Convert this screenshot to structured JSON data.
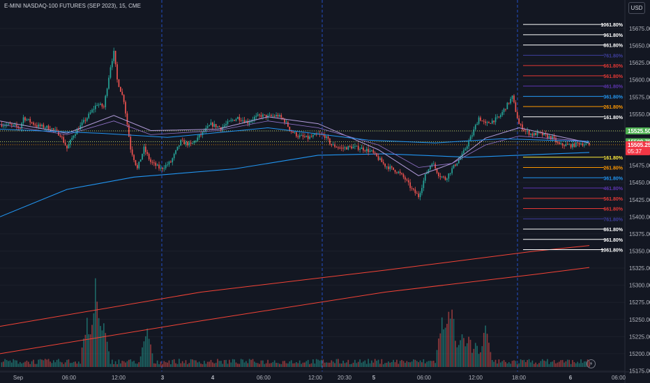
{
  "header": {
    "title": "E-MINI NASDAQ-100 FUTURES (SEP 2023), 15, CME",
    "currency": "USD"
  },
  "chart_data": {
    "type": "candlestick",
    "title": "E-MINI NASDAQ-100 FUTURES (SEP 2023), 15, CME",
    "y_ticks": [
      15675,
      15650,
      15625,
      15600,
      15575,
      15550,
      15525,
      15500,
      15475,
      15450,
      15425,
      15400,
      15375,
      15350,
      15325,
      15300,
      15275,
      15250,
      15225,
      15200,
      15175,
      15150
    ],
    "y_tick_labels": [
      "15675.00",
      "15650.00",
      "15625.00",
      "15600.00",
      "15575.00",
      "15550.00",
      "15525.00",
      "15500.00",
      "15475.00",
      "15450.00",
      "15425.00",
      "15400.00",
      "15375.00",
      "15350.00",
      "15325.00",
      "15300.00",
      "15275.00",
      "15250.00",
      "15225.00",
      "15200.00",
      "15175.00",
      "15150.00"
    ],
    "x_tick_labels": [
      "Sep",
      "06:00",
      "12:00",
      "3",
      "4",
      "06:00",
      "12:00",
      "20:30",
      "5",
      "06:00",
      "12:00",
      "18:00",
      "6",
      "06:00"
    ],
    "session_dividers": [
      "3",
      "4",
      "5",
      "6"
    ],
    "price_labels": {
      "level_a": "15525.50",
      "level_b": "15509.75",
      "last": "15505.25",
      "countdown": "05:37"
    },
    "colors": {
      "up": "#26a69a",
      "down": "#ef5350",
      "ema_fast": "#b39ddb",
      "ema_mid": "#2196f3",
      "ema_slow": "#f44336",
      "divider": "#2962ff",
      "background": "#131722"
    },
    "fib_levels": [
      {
        "label": "1061.80%",
        "value": 15681,
        "color": "#ffffff"
      },
      {
        "label": "961.80%",
        "value": 15666,
        "color": "#ffffff"
      },
      {
        "label": "861.80%",
        "value": 15651,
        "color": "#ffffff"
      },
      {
        "label": "761.80%",
        "value": 15636,
        "color": "#3f3f9f"
      },
      {
        "label": "661.80%",
        "value": 15621,
        "color": "#e53935"
      },
      {
        "label": "561.80%",
        "value": 15606,
        "color": "#e53935"
      },
      {
        "label": "461.80%",
        "value": 15591,
        "color": "#5e35b1"
      },
      {
        "label": "361.80%",
        "value": 15576,
        "color": "#2196f3"
      },
      {
        "label": "261.80%",
        "value": 15561,
        "color": "#ff9800"
      },
      {
        "label": "161.80%",
        "value": 15546,
        "color": "#ffffff"
      },
      {
        "label": "161.80%",
        "value": 15487,
        "color": "#ffeb3b"
      },
      {
        "label": "261.80%",
        "value": 15472,
        "color": "#ff9800"
      },
      {
        "label": "361.80%",
        "value": 15457,
        "color": "#2196f3"
      },
      {
        "label": "461.80%",
        "value": 15442,
        "color": "#5e35b1"
      },
      {
        "label": "561.80%",
        "value": 15427,
        "color": "#e53935"
      },
      {
        "label": "661.80%",
        "value": 15412,
        "color": "#e53935"
      },
      {
        "label": "761.80%",
        "value": 15397,
        "color": "#3f3f9f"
      },
      {
        "label": "861.80%",
        "value": 15382,
        "color": "#ffffff"
      },
      {
        "label": "961.80%",
        "value": 15367,
        "color": "#ffffff"
      },
      {
        "label": "1061.80%",
        "value": 15352,
        "color": "#ffffff"
      }
    ],
    "close_path": [
      [
        0,
        15535
      ],
      [
        6,
        15534
      ],
      [
        12,
        15530
      ],
      [
        14,
        15545
      ],
      [
        22,
        15533
      ],
      [
        30,
        15530
      ],
      [
        36,
        15520
      ],
      [
        40,
        15500
      ],
      [
        44,
        15520
      ],
      [
        52,
        15545
      ],
      [
        58,
        15565
      ],
      [
        62,
        15560
      ],
      [
        66,
        15620
      ],
      [
        68,
        15640
      ],
      [
        70,
        15600
      ],
      [
        74,
        15570
      ],
      [
        78,
        15500
      ],
      [
        82,
        15470
      ],
      [
        86,
        15500
      ],
      [
        90,
        15480
      ],
      [
        96,
        15470
      ],
      [
        102,
        15480
      ],
      [
        108,
        15510
      ],
      [
        114,
        15505
      ],
      [
        120,
        15520
      ],
      [
        126,
        15535
      ],
      [
        132,
        15530
      ],
      [
        138,
        15540
      ],
      [
        142,
        15545
      ],
      [
        148,
        15538
      ],
      [
        152,
        15545
      ],
      [
        156,
        15548
      ],
      [
        160,
        15546
      ],
      [
        166,
        15548
      ],
      [
        170,
        15540
      ],
      [
        174,
        15525
      ],
      [
        178,
        15518
      ],
      [
        184,
        15515
      ],
      [
        190,
        15520
      ],
      [
        194,
        15518
      ],
      [
        198,
        15505
      ],
      [
        204,
        15500
      ],
      [
        210,
        15502
      ],
      [
        216,
        15500
      ],
      [
        222,
        15495
      ],
      [
        226,
        15485
      ],
      [
        230,
        15475
      ],
      [
        234,
        15470
      ],
      [
        238,
        15465
      ],
      [
        242,
        15455
      ],
      [
        246,
        15440
      ],
      [
        250,
        15430
      ],
      [
        254,
        15460
      ],
      [
        258,
        15480
      ],
      [
        262,
        15462
      ],
      [
        266,
        15455
      ],
      [
        270,
        15470
      ],
      [
        276,
        15490
      ],
      [
        282,
        15520
      ],
      [
        286,
        15545
      ],
      [
        290,
        15535
      ],
      [
        294,
        15540
      ],
      [
        298,
        15545
      ],
      [
        302,
        15560
      ],
      [
        306,
        15575
      ],
      [
        310,
        15535
      ],
      [
        314,
        15525
      ],
      [
        318,
        15520
      ],
      [
        322,
        15522
      ],
      [
        326,
        15518
      ],
      [
        330,
        15515
      ],
      [
        334,
        15505
      ],
      [
        338,
        15505
      ],
      [
        342,
        15504
      ],
      [
        346,
        15508
      ],
      [
        350,
        15506
      ],
      [
        352,
        15505.25
      ]
    ],
    "ema_fast": [
      [
        0,
        15540
      ],
      [
        40,
        15522
      ],
      [
        68,
        15548
      ],
      [
        90,
        15526
      ],
      [
        130,
        15528
      ],
      [
        160,
        15546
      ],
      [
        190,
        15536
      ],
      [
        226,
        15498
      ],
      [
        250,
        15460
      ],
      [
        270,
        15478
      ],
      [
        290,
        15515
      ],
      [
        310,
        15530
      ],
      [
        352,
        15508
      ]
    ],
    "ema_mid": [
      [
        0,
        15535
      ],
      [
        40,
        15520
      ],
      [
        68,
        15540
      ],
      [
        90,
        15520
      ],
      [
        130,
        15526
      ],
      [
        160,
        15540
      ],
      [
        190,
        15530
      ],
      [
        226,
        15505
      ],
      [
        250,
        15472
      ],
      [
        270,
        15478
      ],
      [
        290,
        15505
      ],
      [
        310,
        15518
      ],
      [
        352,
        15510
      ]
    ],
    "vwap": [
      [
        0,
        15528
      ],
      [
        60,
        15522
      ],
      [
        100,
        15516
      ],
      [
        160,
        15530
      ],
      [
        220,
        15512
      ],
      [
        260,
        15508
      ],
      [
        300,
        15514
      ],
      [
        352,
        15510
      ]
    ],
    "sma_blue": [
      [
        0,
        15400
      ],
      [
        40,
        15440
      ],
      [
        80,
        15458
      ],
      [
        140,
        15470
      ],
      [
        190,
        15490
      ],
      [
        230,
        15492
      ],
      [
        280,
        15487
      ],
      [
        352,
        15494
      ]
    ],
    "ema_red_upper": [
      [
        0,
        15240
      ],
      [
        120,
        15290
      ],
      [
        230,
        15322
      ],
      [
        320,
        15350
      ],
      [
        352,
        15358
      ]
    ],
    "ema_red_lower": [
      [
        0,
        15200
      ],
      [
        120,
        15248
      ],
      [
        230,
        15290
      ],
      [
        320,
        15316
      ],
      [
        352,
        15326
      ]
    ],
    "volume_spikes": [
      [
        52,
        0.65
      ],
      [
        57,
        1.0
      ],
      [
        58,
        0.85
      ],
      [
        62,
        0.55
      ],
      [
        87,
        0.4
      ],
      [
        88,
        0.45
      ],
      [
        264,
        0.6
      ],
      [
        268,
        0.82
      ],
      [
        270,
        0.7
      ],
      [
        276,
        0.45
      ],
      [
        280,
        0.4
      ],
      [
        284,
        0.3
      ],
      [
        290,
        0.5
      ]
    ]
  }
}
